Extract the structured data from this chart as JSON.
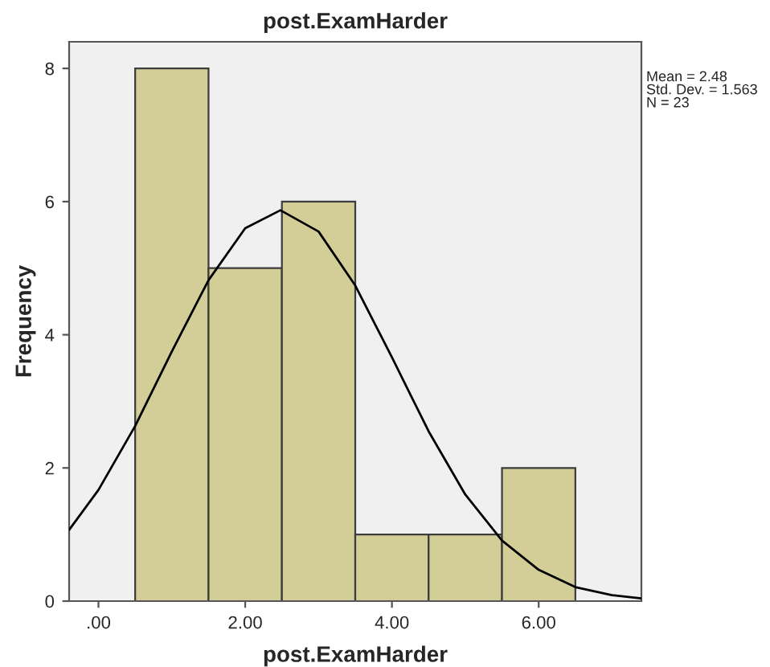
{
  "chart_data": {
    "type": "histogram",
    "title": "post.ExamHarder",
    "xlabel": "post.ExamHarder",
    "ylabel": "Frequency",
    "bins": [
      0.5,
      1.5,
      2.5,
      3.5,
      4.5,
      5.5,
      6.5
    ],
    "values": [
      8,
      5,
      6,
      1,
      1,
      2
    ],
    "color": "#d3ce97",
    "series": [
      {
        "type": "line",
        "color": "#000000",
        "x": [
          -0.4,
          0,
          0.5,
          1,
          1.5,
          2,
          2.48,
          3,
          3.5,
          4,
          4.5,
          5,
          5.5,
          6,
          6.5,
          7,
          7.4
        ],
        "values": [
          1.07,
          1.67,
          2.63,
          3.75,
          4.82,
          5.6,
          5.87,
          5.55,
          4.74,
          3.66,
          2.55,
          1.6,
          0.91,
          0.47,
          0.21,
          0.09,
          0.04
        ]
      }
    ],
    "xlim": [
      -0.4,
      7.4
    ],
    "ylim": [
      0,
      8.4
    ],
    "xticks": [
      {
        "value": 0,
        "label": ".00"
      },
      {
        "value": 2,
        "label": "2.00"
      },
      {
        "value": 4,
        "label": "4.00"
      },
      {
        "value": 6,
        "label": "6.00"
      }
    ],
    "yticks": [
      0,
      2,
      4,
      6,
      8
    ],
    "grid": false,
    "annotations": [
      "Mean = 2.48\nStd. Dev. = 1.563\nN = 23"
    ]
  }
}
